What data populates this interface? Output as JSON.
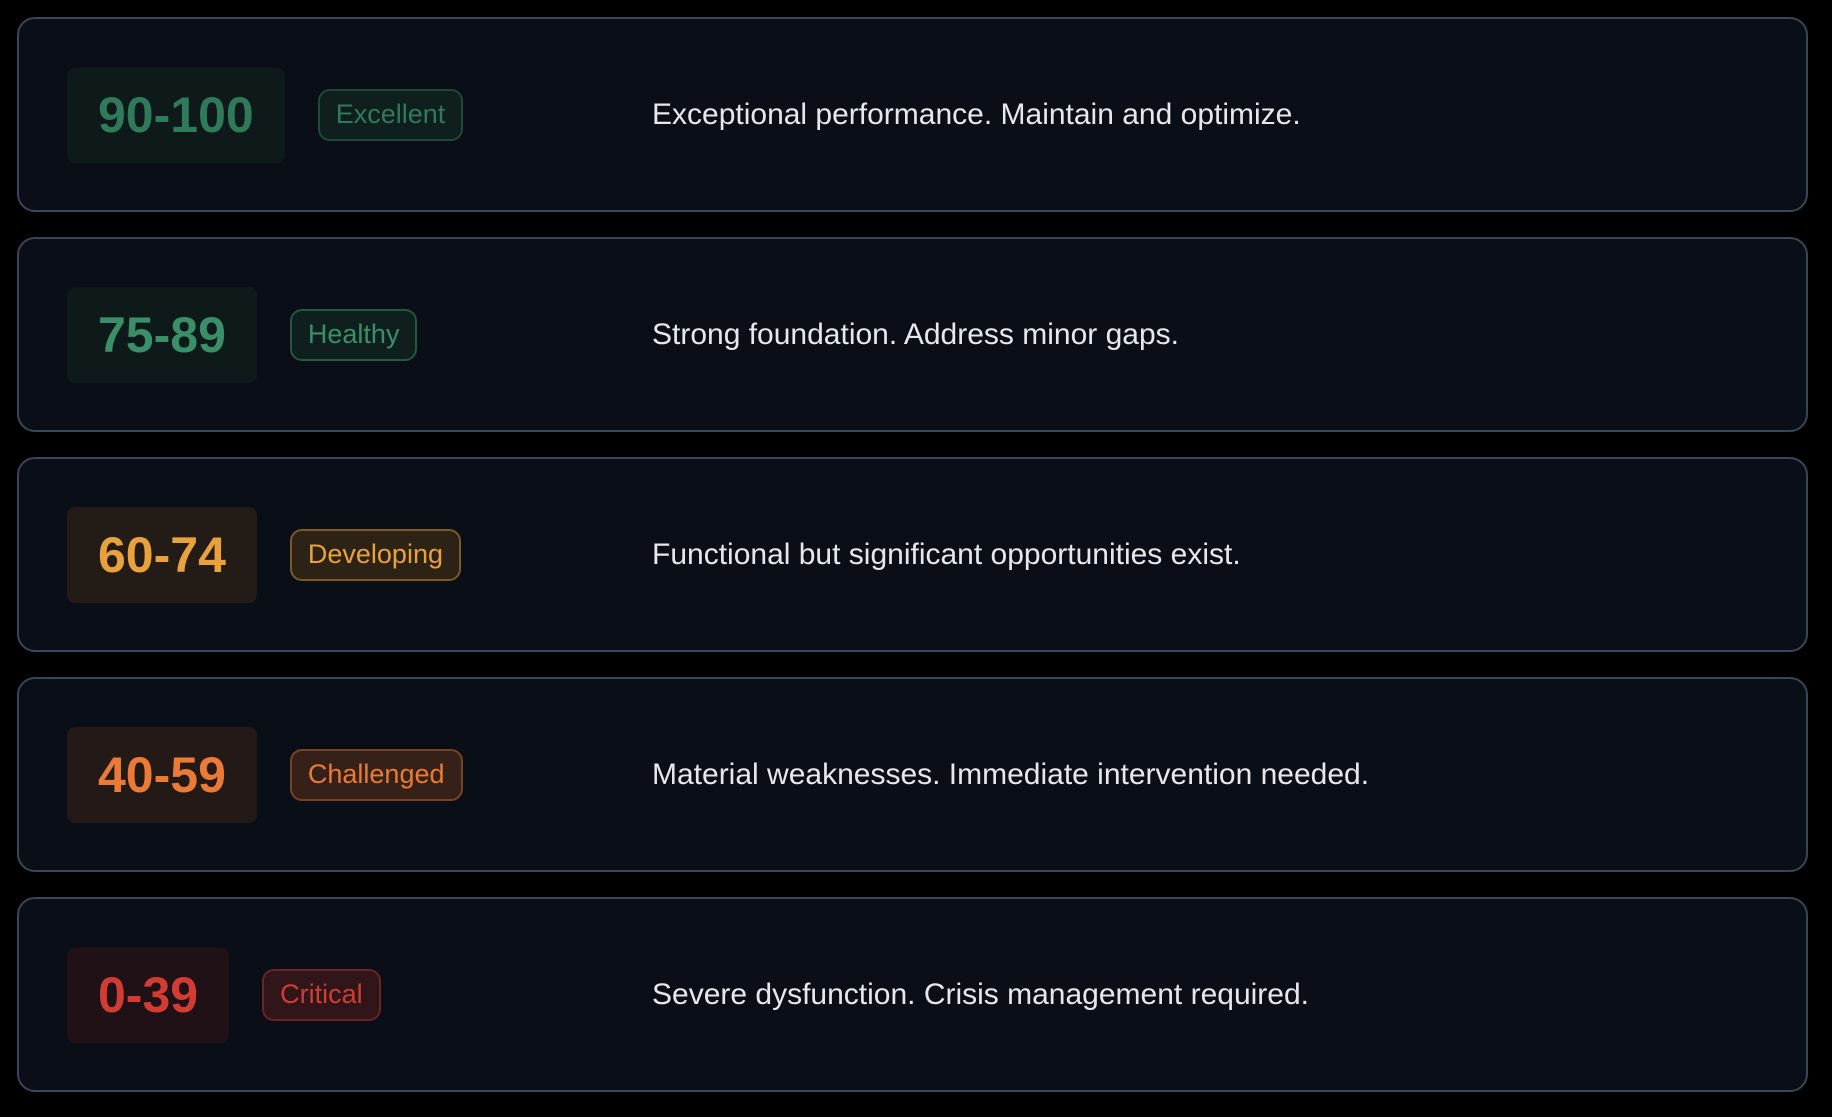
{
  "tiers": [
    {
      "range": "90-100",
      "label": "Excellent",
      "description": "Exceptional performance. Maintain and optimize.",
      "color": "#2f7a5b",
      "score_bg": "#0e1a19",
      "badge_bg": "#0f1f1e",
      "badge_border": "#1f4a3a"
    },
    {
      "range": "75-89",
      "label": "Healthy",
      "description": "Strong foundation. Address minor gaps.",
      "color": "#3a8f68",
      "score_bg": "#0e1a19",
      "badge_bg": "#0f1f1e",
      "badge_border": "#24573f"
    },
    {
      "range": "60-74",
      "label": "Developing",
      "description": "Functional but significant opportunities exist.",
      "color": "#e9a23b",
      "score_bg": "#231c16",
      "badge_bg": "#2d2216",
      "badge_border": "#7a5a26"
    },
    {
      "range": "40-59",
      "label": "Challenged",
      "description": "Material weaknesses. Immediate intervention needed.",
      "color": "#ea7a35",
      "score_bg": "#231a17",
      "badge_bg": "#352118",
      "badge_border": "#7a4125"
    },
    {
      "range": "0-39",
      "label": "Critical",
      "description": "Severe dysfunction. Crisis management required.",
      "color": "#d23c33",
      "score_bg": "#1f1116",
      "badge_bg": "#301519",
      "badge_border": "#6a2426"
    }
  ]
}
